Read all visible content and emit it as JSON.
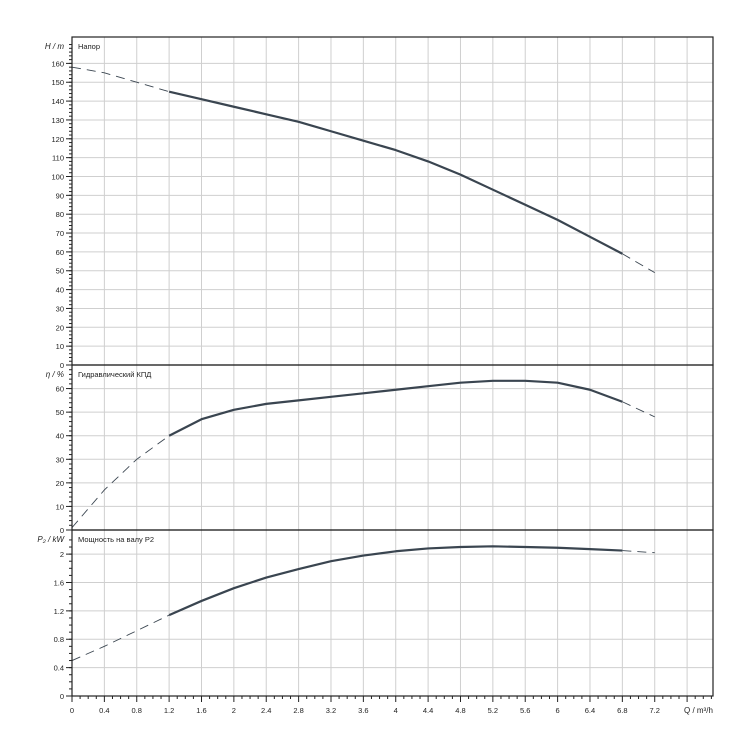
{
  "chart_data": [
    {
      "type": "line",
      "title": "Напор",
      "ylabel": "H / m",
      "xlabel": "Q / m³/h",
      "ylim": [
        0,
        174
      ],
      "yticks": [
        0,
        10,
        20,
        30,
        40,
        50,
        60,
        70,
        80,
        90,
        100,
        110,
        120,
        130,
        140,
        150,
        160
      ],
      "grid": true,
      "solid_range": [
        1.2,
        6.8
      ],
      "x": [
        0,
        0.4,
        0.8,
        1.2,
        1.6,
        2.0,
        2.4,
        2.8,
        3.2,
        3.6,
        4.0,
        4.4,
        4.8,
        5.2,
        5.6,
        6.0,
        6.4,
        6.8,
        7.2
      ],
      "values": [
        158,
        155,
        150,
        145,
        141,
        137,
        133,
        129,
        124,
        119,
        114,
        108,
        101,
        93,
        85,
        77,
        68,
        59,
        49
      ]
    },
    {
      "type": "line",
      "title": "Гидравлический КПД",
      "ylabel": "η / %",
      "xlabel": "Q / m³/h",
      "ylim": [
        0,
        70
      ],
      "yticks": [
        0,
        10,
        20,
        30,
        40,
        50,
        60
      ],
      "grid": true,
      "solid_range": [
        1.2,
        6.8
      ],
      "x": [
        0,
        0.4,
        0.8,
        1.2,
        1.6,
        2.0,
        2.4,
        2.8,
        3.2,
        3.6,
        4.0,
        4.4,
        4.8,
        5.2,
        5.6,
        6.0,
        6.4,
        6.8,
        7.2
      ],
      "values": [
        1,
        17,
        30,
        40,
        47,
        51,
        53.5,
        55,
        56.5,
        58,
        59.5,
        61,
        62.5,
        63.3,
        63.3,
        62.5,
        59.5,
        54.4,
        48
      ]
    },
    {
      "type": "line",
      "title": "Мощность на валу P2",
      "ylabel": "P₂ / kW",
      "xlabel": "Q / m³/h",
      "ylim": [
        0,
        2.34
      ],
      "yticks": [
        0,
        0.4,
        0.8,
        1.2,
        1.6,
        2
      ],
      "grid": true,
      "solid_range": [
        1.2,
        6.8
      ],
      "x": [
        0,
        0.4,
        0.8,
        1.2,
        1.6,
        2.0,
        2.4,
        2.8,
        3.2,
        3.6,
        4.0,
        4.4,
        4.8,
        5.2,
        5.6,
        6.0,
        6.4,
        6.8,
        7.2
      ],
      "values": [
        0.5,
        0.7,
        0.92,
        1.14,
        1.34,
        1.52,
        1.67,
        1.79,
        1.9,
        1.98,
        2.04,
        2.08,
        2.1,
        2.11,
        2.1,
        2.09,
        2.07,
        2.05,
        2.02
      ]
    }
  ],
  "x_axis": {
    "label": "Q / m³/h",
    "ticks": [
      "0",
      "0.4",
      "0.8",
      "1.2",
      "1.6",
      "2",
      "2.4",
      "2.8",
      "3.2",
      "3.6",
      "4",
      "4.4",
      "4.8",
      "5.2",
      "5.6",
      "6",
      "6.4",
      "6.8",
      "7.2"
    ],
    "range": [
      0,
      7.92
    ]
  },
  "colors": {
    "curve": "#3a4550",
    "grid": "#cfcfcf",
    "axis": "#222222"
  }
}
